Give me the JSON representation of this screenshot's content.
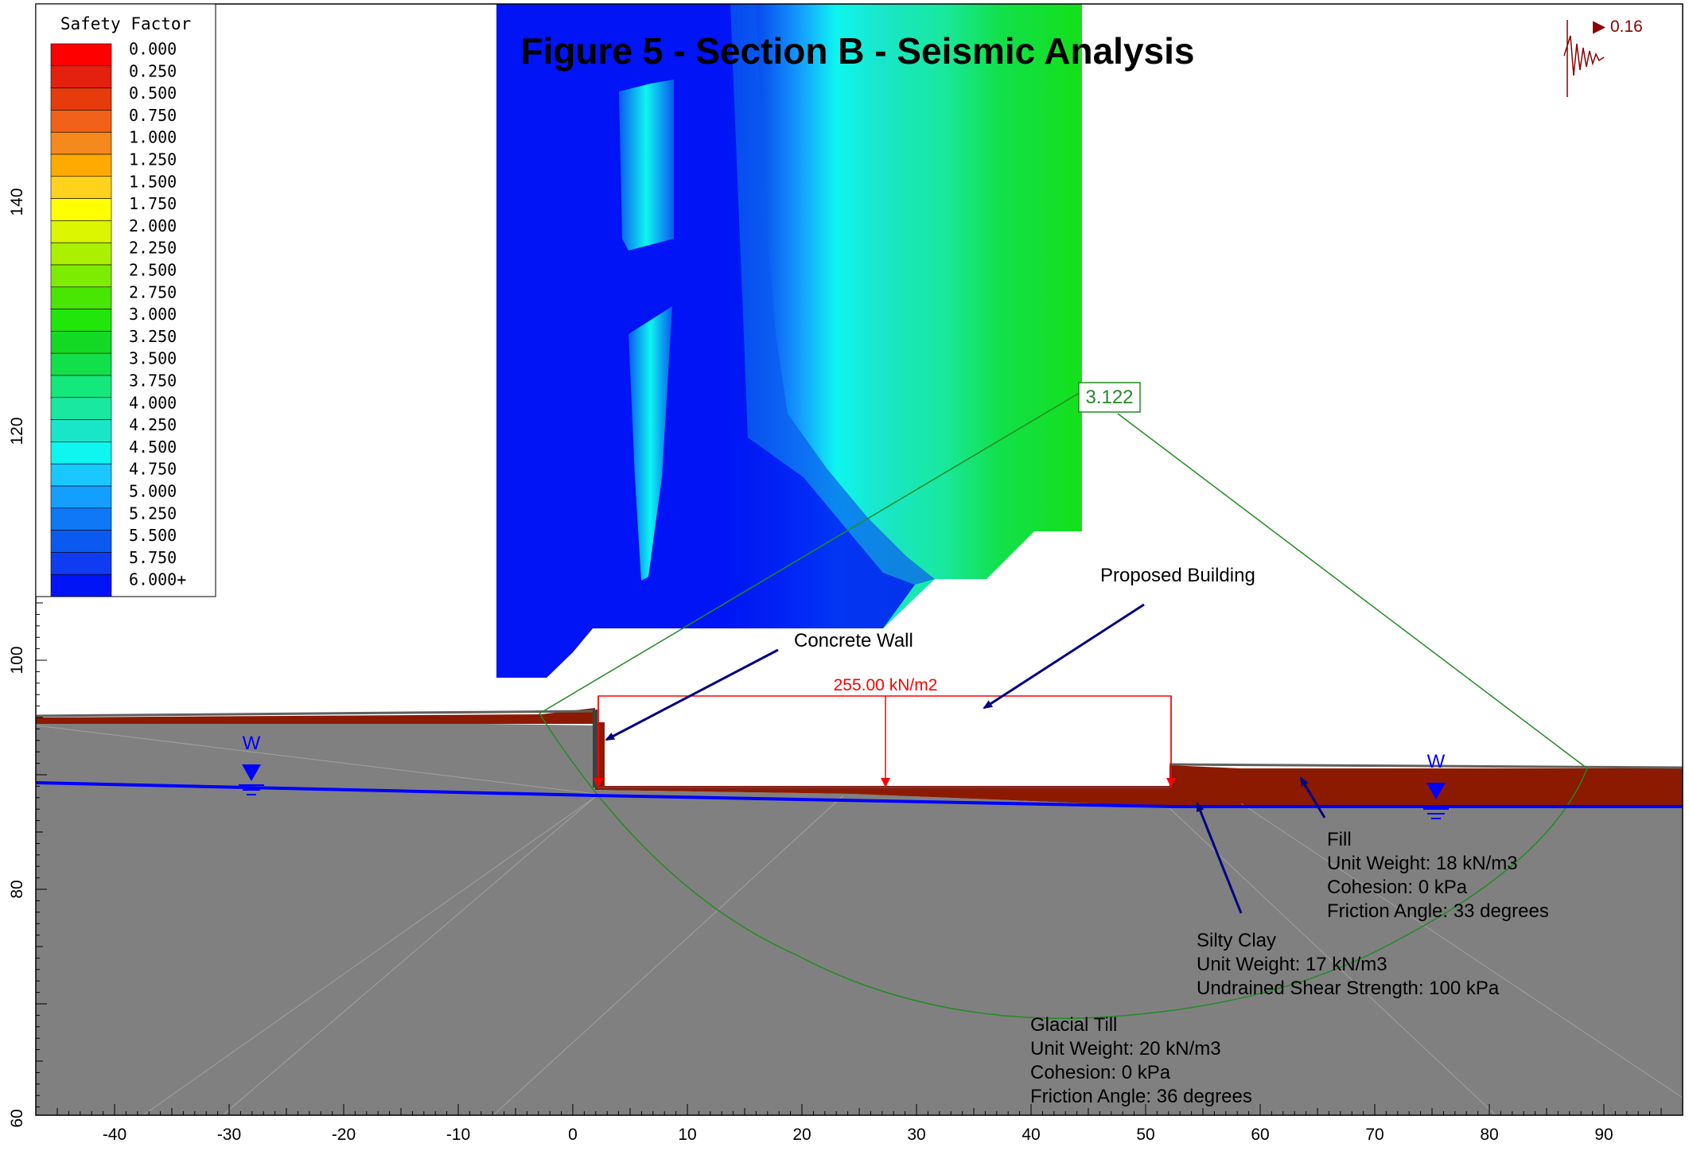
{
  "figure": {
    "title": "Figure 5 - Section B - Seismic Analysis"
  },
  "legend": {
    "title": "Safety Factor",
    "entries": [
      {
        "label": "0.000",
        "color": "#ff0000"
      },
      {
        "label": "0.250",
        "color": "#e4200f"
      },
      {
        "label": "0.500",
        "color": "#e63b0a"
      },
      {
        "label": "0.750",
        "color": "#f26119"
      },
      {
        "label": "1.000",
        "color": "#f5891e"
      },
      {
        "label": "1.250",
        "color": "#ffaa00"
      },
      {
        "label": "1.500",
        "color": "#ffd21e"
      },
      {
        "label": "1.750",
        "color": "#ffff00"
      },
      {
        "label": "2.000",
        "color": "#dcf500"
      },
      {
        "label": "2.250",
        "color": "#aaf000"
      },
      {
        "label": "2.500",
        "color": "#7ded00"
      },
      {
        "label": "2.750",
        "color": "#48e600"
      },
      {
        "label": "3.000",
        "color": "#21e60a"
      },
      {
        "label": "3.250",
        "color": "#14d924"
      },
      {
        "label": "3.500",
        "color": "#12e04a"
      },
      {
        "label": "3.750",
        "color": "#14e87a"
      },
      {
        "label": "4.000",
        "color": "#19e8a0"
      },
      {
        "label": "4.250",
        "color": "#19e6c8"
      },
      {
        "label": "4.500",
        "color": "#0ff5f0"
      },
      {
        "label": "4.750",
        "color": "#19c8ff"
      },
      {
        "label": "5.000",
        "color": "#149eff"
      },
      {
        "label": "5.250",
        "color": "#0f78f5"
      },
      {
        "label": "5.500",
        "color": "#0a5af0"
      },
      {
        "label": "5.750",
        "color": "#0f3cf0"
      },
      {
        "label": "6.000+",
        "color": "#0014f5"
      }
    ]
  },
  "axes": {
    "x_ticks": [
      "-40",
      "-30",
      "-20",
      "-10",
      "0",
      "10",
      "20",
      "30",
      "40",
      "50",
      "60",
      "70",
      "80",
      "90"
    ],
    "y_ticks": [
      "140",
      "120",
      "100",
      "80",
      "60"
    ]
  },
  "seismic": {
    "label": "▶ 0.16"
  },
  "critical_surface": {
    "safety_factor": "3.122"
  },
  "load": {
    "label": "255.00 kN/m2"
  },
  "annotations": {
    "proposed_building": "Proposed Building",
    "concrete_wall": "Concrete Wall"
  },
  "water_table": {
    "symbol": "W"
  },
  "materials": {
    "fill": {
      "name": "Fill",
      "lines": [
        "Unit Weight: 18 kN/m3",
        "Cohesion: 0 kPa",
        "Friction Angle: 33 degrees"
      ]
    },
    "silty_clay": {
      "name": "Silty Clay",
      "lines": [
        "Unit Weight: 17 kN/m3",
        "Undrained Shear Strength: 100 kPa"
      ]
    },
    "glacial_till": {
      "name": "Glacial Till",
      "lines": [
        "Unit Weight: 20 kN/m3",
        "Cohesion: 0 kPa",
        "Friction Angle: 36 degrees"
      ]
    }
  },
  "colors": {
    "soil": "#808080",
    "fill_soil": "#8b1a00",
    "water_line": "#0000ff",
    "slip_surface": "#228b22",
    "load": "#ff0000",
    "callout": "#000080",
    "seismic": "#8b0000"
  }
}
